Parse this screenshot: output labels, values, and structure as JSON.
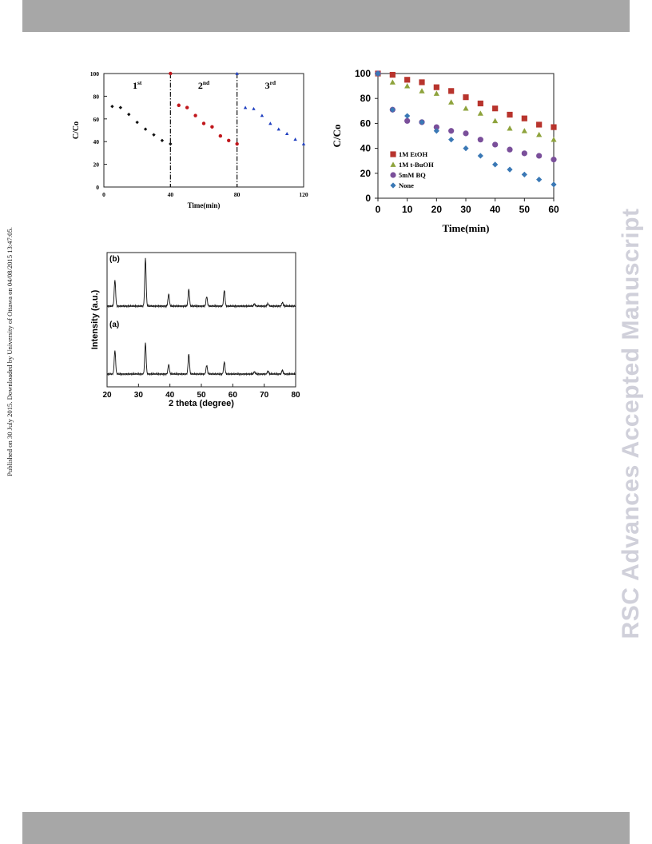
{
  "header": {
    "bar_color": "#a7a7a7"
  },
  "footer": {
    "bar_color": "#a7a7a7"
  },
  "watermark": {
    "text": "RSC Advances Accepted Manuscript",
    "color": "#d0d0da"
  },
  "side_note": {
    "text": "Published on 30 July 2015. Downloaded by University of Ottawa on 04/08/2015 13:47:05."
  },
  "chart_data": [
    {
      "type": "scatter",
      "xlabel": "Time(min)",
      "ylabel": "C/Co",
      "xlim": [
        0,
        120
      ],
      "ylim": [
        0,
        100
      ],
      "xticks": [
        "0",
        "40",
        "80",
        "120"
      ],
      "yticks": [
        "0",
        "20",
        "40",
        "60",
        "80",
        "100"
      ],
      "cycle_dividers": [
        40,
        80
      ],
      "cycle_labels": [
        {
          "label": "1",
          "sup": "st",
          "x": 20
        },
        {
          "label": "2",
          "sup": "nd",
          "x": 60
        },
        {
          "label": "3",
          "sup": "rd",
          "x": 100
        }
      ],
      "series": [
        {
          "color": "#111111",
          "marker": "diamond",
          "points": [
            [
              5,
              71
            ],
            [
              10,
              70
            ],
            [
              15,
              64
            ],
            [
              20,
              57
            ],
            [
              25,
              51
            ],
            [
              30,
              46
            ],
            [
              35,
              41
            ],
            [
              40,
              38
            ]
          ]
        },
        {
          "color": "#c0161b",
          "marker": "circle",
          "points": [
            [
              40,
              100
            ],
            [
              45,
              72
            ],
            [
              50,
              70
            ],
            [
              55,
              63
            ],
            [
              60,
              56
            ],
            [
              65,
              53
            ],
            [
              70,
              45
            ],
            [
              75,
              41
            ],
            [
              80,
              38
            ]
          ]
        },
        {
          "color": "#1f3fc0",
          "marker": "triangle",
          "points": [
            [
              80,
              100
            ],
            [
              85,
              70
            ],
            [
              90,
              69
            ],
            [
              95,
              63
            ],
            [
              100,
              56
            ],
            [
              105,
              51
            ],
            [
              110,
              47
            ],
            [
              115,
              42
            ],
            [
              120,
              38
            ]
          ]
        }
      ]
    },
    {
      "type": "scatter",
      "xlabel": "Time(min)",
      "ylabel": "C/Co",
      "xlim": [
        0,
        60
      ],
      "ylim": [
        0,
        100
      ],
      "xticks": [
        "0",
        "10",
        "20",
        "30",
        "40",
        "50",
        "60"
      ],
      "yticks": [
        "0",
        "20",
        "40",
        "60",
        "80",
        "100"
      ],
      "legend_position": "bottom-left",
      "series": [
        {
          "name": "1M  EtOH",
          "color": "#b8342d",
          "marker": "square",
          "x": [
            0,
            5,
            10,
            15,
            20,
            25,
            30,
            35,
            40,
            45,
            50,
            55,
            60
          ],
          "y": [
            100,
            99,
            95,
            93,
            89,
            86,
            81,
            76,
            72,
            67,
            64,
            59,
            57
          ]
        },
        {
          "name": "1M  t-BuOH",
          "color": "#8ea33c",
          "marker": "triangle",
          "x": [
            0,
            5,
            10,
            15,
            20,
            25,
            30,
            35,
            40,
            45,
            50,
            55,
            60
          ],
          "y": [
            100,
            93,
            90,
            86,
            84,
            77,
            72,
            68,
            62,
            56,
            54,
            51,
            47
          ]
        },
        {
          "name": "5mM  BQ",
          "color": "#7a4f9a",
          "marker": "circle",
          "x": [
            0,
            5,
            10,
            15,
            20,
            25,
            30,
            35,
            40,
            45,
            50,
            55,
            60
          ],
          "y": [
            100,
            71,
            62,
            61,
            57,
            54,
            52,
            47,
            43,
            39,
            36,
            34,
            31
          ]
        },
        {
          "name": "None",
          "color": "#3a78b5",
          "marker": "diamond",
          "x": [
            0,
            5,
            10,
            15,
            20,
            25,
            30,
            35,
            40,
            45,
            50,
            55,
            60
          ],
          "y": [
            100,
            71,
            66,
            61,
            54,
            47,
            40,
            34,
            27,
            23,
            19,
            15,
            11
          ]
        }
      ]
    },
    {
      "type": "line",
      "xlabel": "2 theta (degree)",
      "ylabel": "Intensity (a.u.)",
      "xlim": [
        20,
        80
      ],
      "xticks": [
        "20",
        "30",
        "40",
        "50",
        "60",
        "70",
        "80"
      ],
      "peaks_2theta": [
        22.5,
        32.2,
        39.6,
        46.0,
        51.7,
        57.3,
        66.9,
        71.2,
        75.8
      ],
      "series": [
        {
          "name": "(b)",
          "heights": [
            0.55,
            1.0,
            0.25,
            0.35,
            0.2,
            0.33,
            0.05,
            0.05,
            0.08
          ]
        },
        {
          "name": "(a)",
          "heights": [
            0.55,
            0.72,
            0.22,
            0.46,
            0.2,
            0.28,
            0.05,
            0.07,
            0.09
          ]
        }
      ]
    }
  ]
}
